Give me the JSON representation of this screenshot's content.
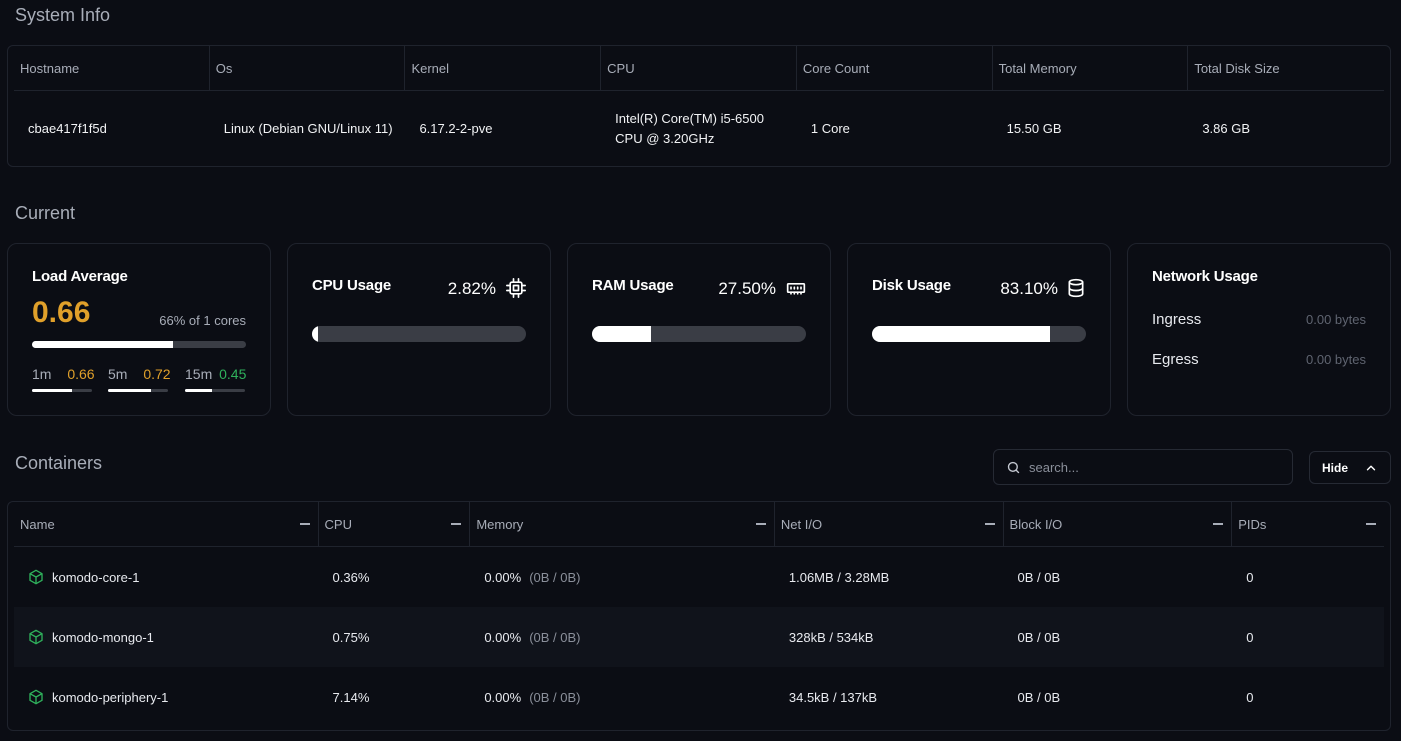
{
  "system_info": {
    "title": "System Info",
    "headers": [
      "Hostname",
      "Os",
      "Kernel",
      "CPU",
      "Core Count",
      "Total Memory",
      "Total Disk Size"
    ],
    "values": [
      "cbae417f1f5d",
      "Linux (Debian GNU/Linux 11)",
      "6.17.2-2-pve",
      "Intel(R) Core(TM) i5-6500 CPU @ 3.20GHz",
      "1 Core",
      "15.50 GB",
      "3.86 GB"
    ]
  },
  "current": {
    "title": "Current",
    "load": {
      "title": "Load Average",
      "value": "0.66",
      "sub": "66% of 1 cores",
      "fraction": 0.66,
      "m1_label": "1m",
      "m1_value": "0.66",
      "m1_fraction": 0.66,
      "m5_label": "5m",
      "m5_value": "0.72",
      "m5_fraction": 0.72,
      "m15_label": "15m",
      "m15_value": "0.45",
      "m15_fraction": 0.45,
      "colors": {
        "warn": "#e0a02a",
        "ok": "#2fb15c"
      }
    },
    "cpu": {
      "title": "CPU Usage",
      "value": "2.82%",
      "fraction": 0.0282,
      "icon": "cpu-icon"
    },
    "ram": {
      "title": "RAM Usage",
      "value": "27.50%",
      "fraction": 0.275,
      "icon": "memory-icon"
    },
    "disk": {
      "title": "Disk Usage",
      "value": "83.10%",
      "fraction": 0.831,
      "icon": "database-icon"
    },
    "network": {
      "title": "Network Usage",
      "ingress_label": "Ingress",
      "ingress_value": "0.00 bytes",
      "egress_label": "Egress",
      "egress_value": "0.00 bytes"
    }
  },
  "containers": {
    "title": "Containers",
    "search_placeholder": "search...",
    "hide_label": "Hide",
    "headers": [
      "Name",
      "CPU",
      "Memory",
      "Net I/O",
      "Block I/O",
      "PIDs"
    ],
    "rows": [
      {
        "name": "komodo-core-1",
        "cpu": "0.36%",
        "mem": "0.00%",
        "mem_detail": "(0B / 0B)",
        "net": "1.06MB / 3.28MB",
        "block": "0B / 0B",
        "pids": "0"
      },
      {
        "name": "komodo-mongo-1",
        "cpu": "0.75%",
        "mem": "0.00%",
        "mem_detail": "(0B / 0B)",
        "net": "328kB / 534kB",
        "block": "0B / 0B",
        "pids": "0"
      },
      {
        "name": "komodo-periphery-1",
        "cpu": "7.14%",
        "mem": "0.00%",
        "mem_detail": "(0B / 0B)",
        "net": "34.5kB / 137kB",
        "block": "0B / 0B",
        "pids": "0"
      }
    ],
    "icon_color": "#2fb15c"
  }
}
